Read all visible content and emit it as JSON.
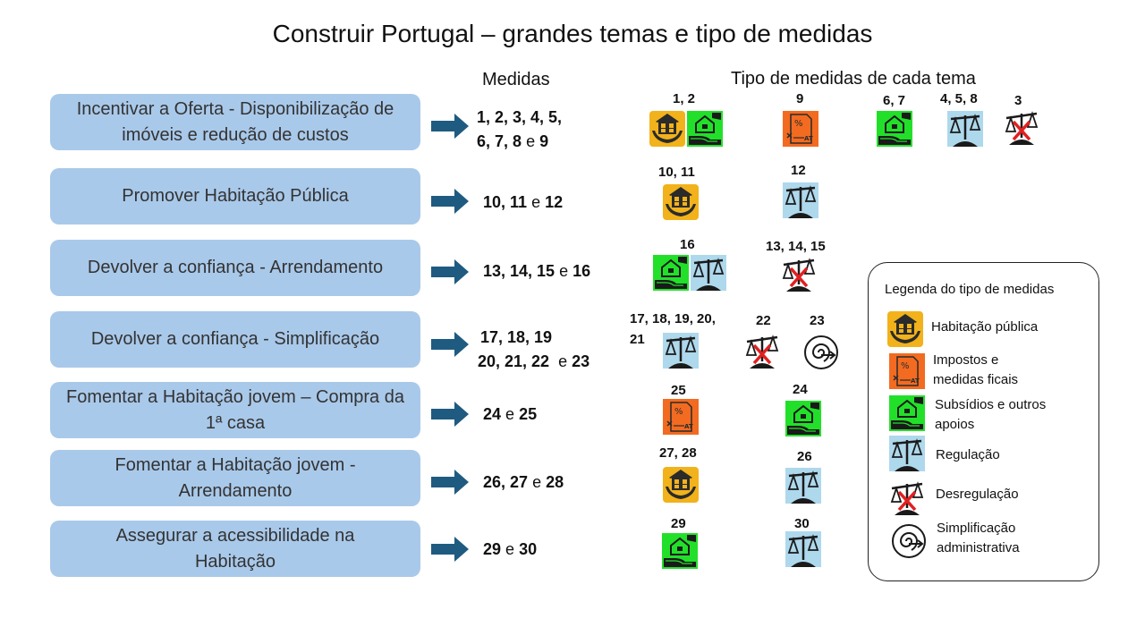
{
  "title": "Construir Portugal – grandes temas e tipo de medidas",
  "headers": {
    "measures": "Medidas",
    "types": "Tipo de medidas de cada tema"
  },
  "colors": {
    "theme_box": "#a9c9ea",
    "arrow": "#1f5b80",
    "habitacao": "#f2b21b",
    "impostos": "#f26b21",
    "subsidios": "#22e02a",
    "regulacao": "#aed8ec"
  },
  "themes": [
    {
      "label": "Incentivar a Oferta - Disponibilização de imóveis e redução de custos",
      "measures_line1": "1, 2, 3, 4, 5,",
      "measures_line2": "6, 7, 8",
      "and": "e",
      "last": "9"
    },
    {
      "label": "Promover Habitação Pública",
      "measures_line1": "10, 11",
      "and": "e",
      "last": "12"
    },
    {
      "label": "Devolver a confiança - Arrendamento",
      "measures_line1": "13, 14, 15",
      "and": "e",
      "last": "16"
    },
    {
      "label": "Devolver a confiança - Simplificação",
      "measures_line1": "17, 18, 19",
      "measures_line2": "20, 21, 22",
      "and": "e",
      "last": "23"
    },
    {
      "label": "Fomentar a Habitação jovem – Compra da 1ª casa",
      "measures_line1": "24",
      "and": "e",
      "last": "25"
    },
    {
      "label": "Fomentar a Habitação jovem - Arrendamento",
      "measures_line1": "26, 27",
      "and": "e",
      "last": "28"
    },
    {
      "label": "Assegurar a acessibilidade na Habitação",
      "measures_line1": "29",
      "and": "e",
      "last": "30"
    }
  ],
  "type_labels": {
    "r1a": "1, 2",
    "r1b": "9",
    "r1c": "6, 7",
    "r1d": "4, 5, 8",
    "r1e": "3",
    "r2a": "10, 11",
    "r2b": "12",
    "r3a": "16",
    "r3b": "13, 14, 15",
    "r4a1": "17, 18, 19, 20,",
    "r4a2": "21",
    "r4b": "22",
    "r4c": "23",
    "r5a": "25",
    "r5b": "24",
    "r6a": "27, 28",
    "r6b": "26",
    "r7a": "29",
    "r7b": "30"
  },
  "legend": {
    "title": "Legenda do tipo de medidas",
    "items": [
      {
        "icon": "house-family-icon",
        "text1": "Habitação pública"
      },
      {
        "icon": "tax-document-icon",
        "text1": "Impostos e",
        "text2": "medidas ficais"
      },
      {
        "icon": "hand-house-icon",
        "text1": "Subsídios e outros",
        "text2": "apoios"
      },
      {
        "icon": "scale-icon",
        "text1": "Regulação"
      },
      {
        "icon": "crossed-scale-icon",
        "text1": "Desregulação"
      },
      {
        "icon": "spiral-arrow-icon",
        "text1": "Simplificação",
        "text2": "administrativa"
      }
    ]
  }
}
